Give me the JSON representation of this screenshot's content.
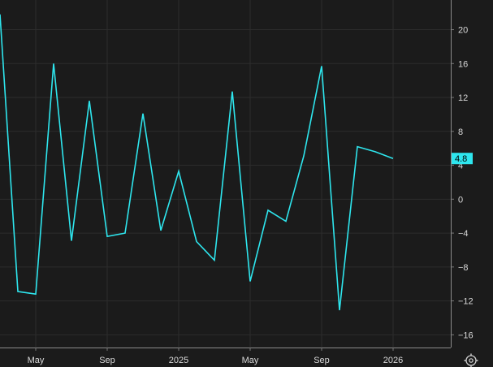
{
  "chart_data": {
    "type": "line",
    "x_ticks": [
      "May",
      "Sep",
      "2025",
      "May",
      "Sep",
      "2026"
    ],
    "y_ticks": [
      20,
      16,
      12,
      8,
      4,
      0,
      -4,
      -8,
      -12,
      -16
    ],
    "ylim": [
      -17.5,
      23.5
    ],
    "grid": true,
    "series": [
      {
        "color": "#2ee6ee",
        "x": [
          "2024-03",
          "2024-04",
          "2024-05",
          "2024-06",
          "2024-07",
          "2024-08",
          "2024-09",
          "2024-10",
          "2024-11",
          "2024-12",
          "2025-01",
          "2025-02",
          "2025-03",
          "2025-04",
          "2025-05",
          "2025-06",
          "2025-07",
          "2025-08",
          "2025-09",
          "2025-10",
          "2025-11",
          "2025-12",
          "2026-01"
        ],
        "values": [
          21.8,
          -10.9,
          -11.2,
          16.0,
          -4.9,
          11.6,
          -4.4,
          -4.0,
          10.1,
          -3.7,
          3.3,
          -5.0,
          -7.2,
          12.7,
          -9.7,
          -1.3,
          -2.6,
          5.1,
          15.7,
          -13.1,
          6.2,
          5.6,
          4.8
        ]
      }
    ],
    "last_value_label": "4.8",
    "last_value_color": "#2ee6ee"
  },
  "settings_icon": "settings-gear-icon"
}
